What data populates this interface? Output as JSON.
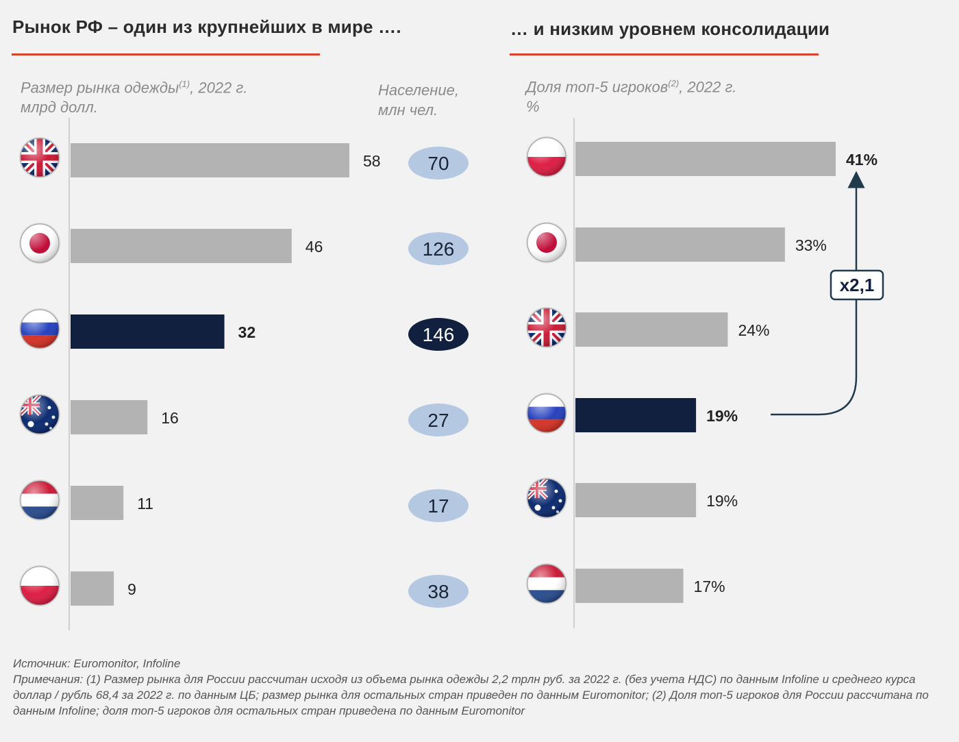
{
  "left": {
    "title": "Рынок РФ – один из крупнейших в мире ….",
    "subtitle_line1": "Размер рынка одежды",
    "subtitle_sup": "(1)",
    "subtitle_line1_rest": ", 2022 г.",
    "subtitle_line2": "млрд долл."
  },
  "population": {
    "label_line1": "Население,",
    "label_line2": "млн чел."
  },
  "right": {
    "title": "… и низким уровнем консолидации",
    "subtitle_line1": "Доля топ-5 игроков",
    "subtitle_sup": "(2)",
    "subtitle_line1_rest": ", 2022 г.",
    "subtitle_line2": "%"
  },
  "annotation": {
    "multiplier_label": "x2,1"
  },
  "footer": {
    "source": "Источник: Euromonitor, Infoline",
    "notes": "Примечания: (1) Размер рынка для России рассчитан исходя из объема рынка одежды 2,2 трлн руб. за 2022 г. (без учета НДС) по данным Infoline и среднего курса доллар / рубль 68,4 за 2022 г. по данным ЦБ; размер рынка для остальных стран приведен по данным Euromonitor; (2) Доля топ-5 игроков для России рассчитана по данным Infoline; доля топ-5 игроков для остальных стран приведена по данным Euromonitor"
  },
  "colors": {
    "bar_grey": "#b3b3b3",
    "bar_highlight": "#12203f",
    "accent_red": "#d9412b",
    "pill_blue": "#b4c8e1",
    "pill_dark": "#12203f"
  },
  "chart_data": [
    {
      "type": "bar",
      "orientation": "horizontal",
      "categories": [
        "uk-flag-icon",
        "japan-flag-icon",
        "russia-flag-icon",
        "australia-flag-icon",
        "netherlands-flag-icon",
        "poland-flag-icon"
      ],
      "values": [
        58,
        46,
        32,
        16,
        11,
        9
      ],
      "value_labels": [
        "58",
        "46",
        "32",
        "16",
        "11",
        "9"
      ],
      "highlight_index": 2,
      "population": [
        70,
        126,
        146,
        27,
        17,
        38
      ],
      "population_labels": [
        "70",
        "126",
        "146",
        "27",
        "17",
        "38"
      ],
      "xlim": [
        0,
        58
      ]
    },
    {
      "type": "bar",
      "orientation": "horizontal",
      "categories": [
        "poland-flag-icon",
        "japan-flag-icon",
        "uk-flag-icon",
        "russia-flag-icon",
        "australia-flag-icon",
        "netherlands-flag-icon"
      ],
      "values": [
        41,
        33,
        24,
        19,
        19,
        17
      ],
      "value_labels": [
        "41%",
        "33%",
        "24%",
        "19%",
        "19%",
        "17%"
      ],
      "highlight_index": 3,
      "xlim": [
        0,
        41
      ]
    }
  ]
}
